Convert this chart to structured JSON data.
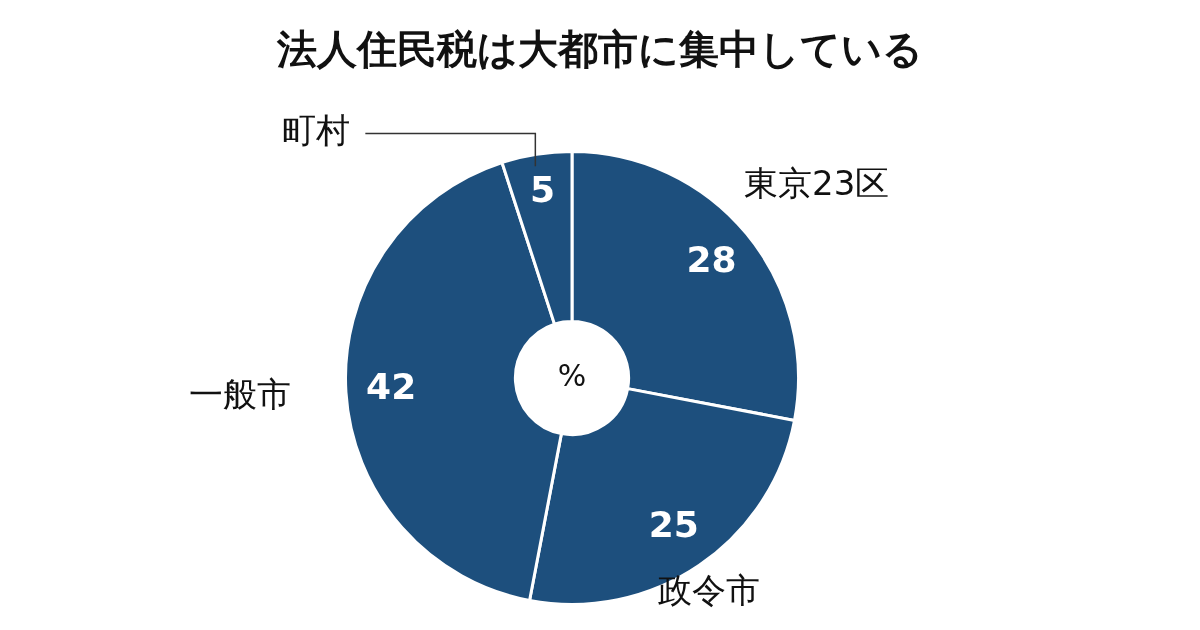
{
  "chart_data": {
    "type": "donut",
    "title": "法人住民税は大都市に集中している",
    "categories": [
      "東京23区",
      "政令市",
      "一般市",
      "町村"
    ],
    "values": [
      28,
      25,
      42,
      5
    ],
    "colors": [
      "#1d4f7d",
      "#1d4f7d",
      "#1d4f7d",
      "#1d4f7d"
    ],
    "data_labels": true,
    "annotations": [
      "%"
    ]
  }
}
